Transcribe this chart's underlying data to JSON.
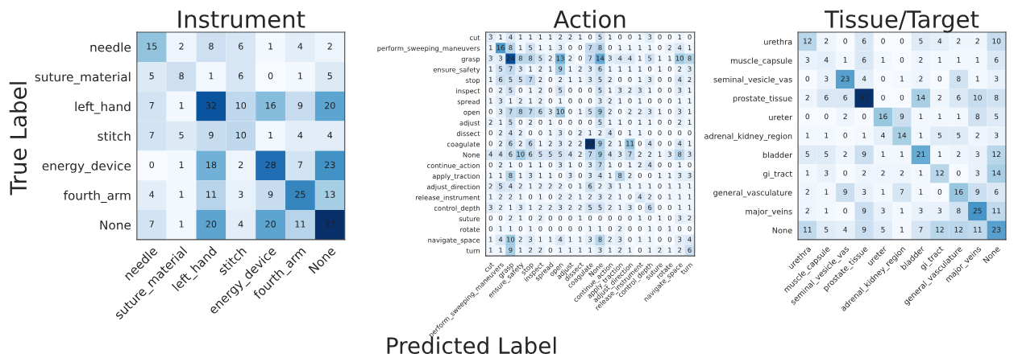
{
  "chart_data": [
    {
      "type": "heatmap",
      "title": "Instrument",
      "ylabel": "True Label",
      "data_labels": true,
      "categories": [
        "needle",
        "suture_material",
        "left_hand",
        "stitch",
        "energy_device",
        "fourth_arm",
        "None"
      ],
      "y_categories": [
        "needle",
        "suture_material",
        "left_hand",
        "stitch",
        "energy_device",
        "fourth_arm",
        "None"
      ],
      "cells": [
        [
          15,
          2,
          8,
          6,
          1,
          4,
          2
        ],
        [
          5,
          8,
          1,
          6,
          0,
          1,
          5
        ],
        [
          7,
          1,
          32,
          10,
          16,
          9,
          20
        ],
        [
          7,
          5,
          9,
          10,
          1,
          4,
          4
        ],
        [
          0,
          1,
          18,
          2,
          28,
          7,
          23
        ],
        [
          4,
          1,
          11,
          3,
          9,
          25,
          13
        ],
        [
          7,
          1,
          20,
          4,
          20,
          11,
          37
        ]
      ]
    },
    {
      "type": "heatmap",
      "title": "Action",
      "xlabel": "Predicted Label",
      "data_labels": true,
      "categories": [
        "cut",
        "perform_sweeping_maneuvers",
        "grasp",
        "ensure_safety",
        "stop",
        "inspect",
        "spread",
        "open",
        "adjust",
        "dissect",
        "coagulate",
        "None",
        "continue_action",
        "apply_traction",
        "adjust_direction",
        "release_instrument",
        "control_depth",
        "suture",
        "rotate",
        "navigate_space",
        "turn"
      ],
      "y_categories": [
        "cut",
        "perform_sweeping_maneuvers",
        "grasp",
        "ensure_safety",
        "stop",
        "inspect",
        "spread",
        "open",
        "adjust",
        "dissect",
        "coagulate",
        "None",
        "continue_action",
        "apply_traction",
        "adjust_direction",
        "release_instrument",
        "control_depth",
        "suture",
        "rotate",
        "navigate_space",
        "turn"
      ],
      "cells": [
        [
          3,
          1,
          4,
          1,
          1,
          1,
          1,
          2,
          2,
          1,
          0,
          5,
          1,
          0,
          0,
          1,
          3,
          0,
          0,
          1,
          0
        ],
        [
          1,
          16,
          8,
          1,
          5,
          1,
          1,
          3,
          0,
          0,
          7,
          8,
          0,
          1,
          1,
          1,
          1,
          0,
          2,
          4,
          1
        ],
        [
          3,
          3,
          24,
          8,
          8,
          5,
          2,
          13,
          2,
          0,
          7,
          14,
          3,
          4,
          4,
          1,
          5,
          1,
          1,
          10,
          8
        ],
        [
          1,
          5,
          7,
          3,
          1,
          2,
          1,
          9,
          1,
          2,
          3,
          6,
          1,
          1,
          1,
          1,
          0,
          1,
          0,
          2,
          3
        ],
        [
          1,
          6,
          5,
          5,
          7,
          2,
          0,
          2,
          1,
          1,
          3,
          5,
          2,
          0,
          0,
          1,
          3,
          0,
          0,
          4,
          2
        ],
        [
          0,
          2,
          5,
          0,
          1,
          2,
          0,
          5,
          0,
          0,
          0,
          5,
          1,
          3,
          2,
          3,
          1,
          0,
          0,
          3,
          1
        ],
        [
          1,
          3,
          1,
          2,
          1,
          2,
          0,
          1,
          0,
          0,
          0,
          3,
          2,
          1,
          0,
          1,
          0,
          0,
          0,
          1,
          1
        ],
        [
          0,
          3,
          7,
          8,
          7,
          6,
          3,
          10,
          0,
          1,
          5,
          9,
          2,
          0,
          2,
          2,
          3,
          1,
          0,
          3,
          1
        ],
        [
          2,
          1,
          5,
          0,
          2,
          0,
          1,
          0,
          0,
          0,
          0,
          5,
          1,
          1,
          0,
          1,
          1,
          0,
          0,
          2,
          1
        ],
        [
          0,
          2,
          4,
          2,
          0,
          0,
          1,
          3,
          0,
          2,
          1,
          2,
          4,
          0,
          1,
          1,
          0,
          0,
          0,
          0,
          0
        ],
        [
          0,
          2,
          6,
          2,
          6,
          1,
          2,
          3,
          2,
          2,
          27,
          9,
          2,
          1,
          11,
          0,
          4,
          0,
          0,
          4,
          1
        ],
        [
          4,
          4,
          6,
          10,
          6,
          5,
          5,
          5,
          4,
          2,
          7,
          9,
          4,
          3,
          7,
          2,
          2,
          1,
          3,
          8,
          3
        ],
        [
          0,
          2,
          1,
          0,
          1,
          1,
          0,
          3,
          1,
          0,
          3,
          7,
          1,
          0,
          1,
          2,
          4,
          0,
          0,
          1,
          0
        ],
        [
          1,
          1,
          8,
          1,
          3,
          1,
          1,
          0,
          3,
          0,
          3,
          4,
          1,
          8,
          2,
          0,
          0,
          1,
          1,
          3,
          3
        ],
        [
          2,
          5,
          4,
          2,
          1,
          2,
          2,
          2,
          0,
          1,
          6,
          2,
          3,
          1,
          1,
          1,
          1,
          0,
          1,
          1,
          1
        ],
        [
          1,
          2,
          2,
          1,
          0,
          1,
          0,
          2,
          2,
          1,
          2,
          3,
          2,
          1,
          0,
          4,
          2,
          0,
          1,
          1,
          1
        ],
        [
          3,
          2,
          1,
          3,
          1,
          2,
          2,
          3,
          2,
          2,
          5,
          5,
          2,
          1,
          3,
          0,
          6,
          0,
          0,
          1,
          1
        ],
        [
          0,
          0,
          2,
          1,
          0,
          2,
          0,
          0,
          0,
          1,
          0,
          0,
          0,
          0,
          0,
          1,
          0,
          1,
          0,
          3,
          2
        ],
        [
          0,
          1,
          1,
          0,
          1,
          0,
          0,
          0,
          0,
          0,
          1,
          1,
          0,
          2,
          0,
          0,
          1,
          0,
          1,
          0,
          0
        ],
        [
          1,
          4,
          10,
          2,
          3,
          1,
          1,
          4,
          1,
          1,
          3,
          8,
          2,
          3,
          0,
          1,
          1,
          0,
          0,
          3,
          4
        ],
        [
          1,
          1,
          9,
          1,
          2,
          2,
          0,
          1,
          1,
          1,
          1,
          3,
          1,
          2,
          1,
          0,
          1,
          2,
          1,
          2,
          6
        ]
      ]
    },
    {
      "type": "heatmap",
      "title": "Tissue/Target",
      "data_labels": true,
      "categories": [
        "urethra",
        "muscle_capsule",
        "seminal_vesicle_vas",
        "prostate_tissue",
        "ureter",
        "adrenal_kidney_region",
        "bladder",
        "gi_tract",
        "general_vasculature",
        "major_veins",
        "None"
      ],
      "y_categories": [
        "urethra",
        "muscle_capsule",
        "seminal_vesicle_vas",
        "prostate_tissue",
        "ureter",
        "adrenal_kidney_region",
        "bladder",
        "gi_tract",
        "general_vasculature",
        "major_veins",
        "None"
      ],
      "cells": [
        [
          12,
          2,
          0,
          6,
          0,
          0,
          5,
          4,
          2,
          2,
          10
        ],
        [
          3,
          4,
          1,
          6,
          1,
          0,
          2,
          1,
          1,
          1,
          6
        ],
        [
          0,
          3,
          23,
          4,
          0,
          1,
          2,
          0,
          8,
          1,
          3
        ],
        [
          2,
          6,
          6,
          41,
          0,
          0,
          14,
          2,
          6,
          10,
          8
        ],
        [
          0,
          0,
          2,
          0,
          16,
          9,
          1,
          1,
          1,
          8,
          5
        ],
        [
          1,
          1,
          0,
          1,
          4,
          14,
          1,
          5,
          5,
          2,
          3
        ],
        [
          5,
          5,
          2,
          9,
          1,
          1,
          21,
          1,
          2,
          3,
          12
        ],
        [
          1,
          3,
          0,
          2,
          2,
          2,
          1,
          12,
          0,
          3,
          14
        ],
        [
          2,
          1,
          9,
          3,
          1,
          7,
          1,
          0,
          16,
          9,
          6
        ],
        [
          2,
          1,
          0,
          9,
          3,
          1,
          3,
          3,
          8,
          25,
          11
        ],
        [
          11,
          5,
          4,
          9,
          5,
          1,
          7,
          12,
          12,
          11,
          23
        ]
      ]
    }
  ]
}
